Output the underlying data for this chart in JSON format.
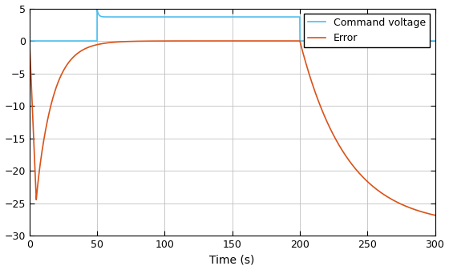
{
  "xlim": [
    0,
    300
  ],
  "ylim": [
    -30,
    5
  ],
  "xlabel": "Time (s)",
  "xticks": [
    0,
    50,
    100,
    150,
    200,
    250,
    300
  ],
  "yticks": [
    -30,
    -25,
    -20,
    -15,
    -10,
    -5,
    0,
    5
  ],
  "command_color": "#4DBEEE",
  "error_color": "#D95319",
  "legend_labels": [
    "Command voltage",
    "Error"
  ],
  "background_color": "#FFFFFF",
  "grid_color": "#C0C0C0",
  "linewidth": 1.2,
  "figsize": [
    5.6,
    3.37
  ],
  "dpi": 100
}
